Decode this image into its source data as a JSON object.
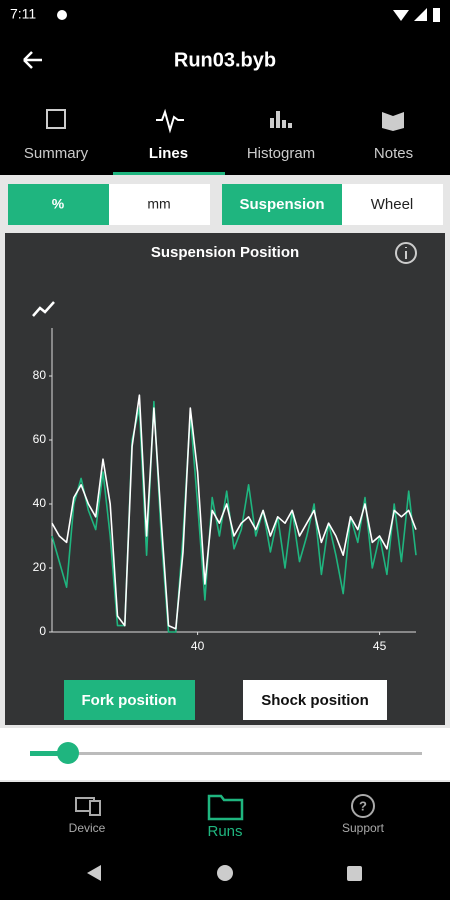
{
  "status_bar": {
    "time": "7:11"
  },
  "header": {
    "title": "Run03.byb"
  },
  "tabs": [
    "Summary",
    "Lines",
    "Histogram",
    "Notes"
  ],
  "unit_toggle": [
    "%",
    "mm"
  ],
  "view_toggle": [
    "Suspension",
    "Wheel"
  ],
  "chart_data": {
    "type": "line",
    "title": "Suspension Position",
    "x": [
      36.0,
      36.2,
      36.4,
      36.6,
      36.8,
      37.0,
      37.2,
      37.4,
      37.6,
      37.8,
      38.0,
      38.2,
      38.4,
      38.6,
      38.8,
      39.0,
      39.2,
      39.4,
      39.6,
      39.8,
      40.0,
      40.2,
      40.4,
      40.6,
      40.8,
      41.0,
      41.2,
      41.4,
      41.6,
      41.8,
      42.0,
      42.2,
      42.4,
      42.6,
      42.8,
      43.0,
      43.2,
      43.4,
      43.6,
      43.8,
      44.0,
      44.2,
      44.4,
      44.6,
      44.8,
      45.0,
      45.2,
      45.4,
      45.6,
      45.8,
      46.0
    ],
    "series": [
      {
        "name": "Fork position",
        "color": "#1fb57f",
        "values": [
          30,
          22,
          14,
          40,
          48,
          38,
          32,
          50,
          30,
          2,
          2,
          60,
          70,
          24,
          72,
          30,
          0,
          0,
          30,
          68,
          40,
          10,
          42,
          30,
          44,
          26,
          32,
          46,
          30,
          38,
          25,
          36,
          20,
          38,
          22,
          30,
          40,
          18,
          34,
          24,
          12,
          36,
          28,
          42,
          20,
          30,
          18,
          40,
          22,
          44,
          24
        ]
      },
      {
        "name": "Shock position",
        "color": "#ffffff",
        "values": [
          34,
          30,
          28,
          42,
          46,
          40,
          36,
          54,
          40,
          5,
          2,
          58,
          74,
          30,
          70,
          35,
          2,
          1,
          25,
          70,
          50,
          15,
          38,
          34,
          40,
          30,
          34,
          36,
          32,
          38,
          30,
          36,
          34,
          38,
          30,
          34,
          38,
          28,
          34,
          30,
          24,
          36,
          32,
          40,
          28,
          30,
          26,
          38,
          36,
          38,
          32
        ]
      }
    ],
    "xlim": [
      36,
      46
    ],
    "ylim": [
      0,
      95
    ],
    "xticks": [
      40,
      45
    ],
    "yticks": [
      0,
      20,
      40,
      60,
      80
    ]
  },
  "bottom_nav": [
    "Device",
    "Runs",
    "Support"
  ]
}
